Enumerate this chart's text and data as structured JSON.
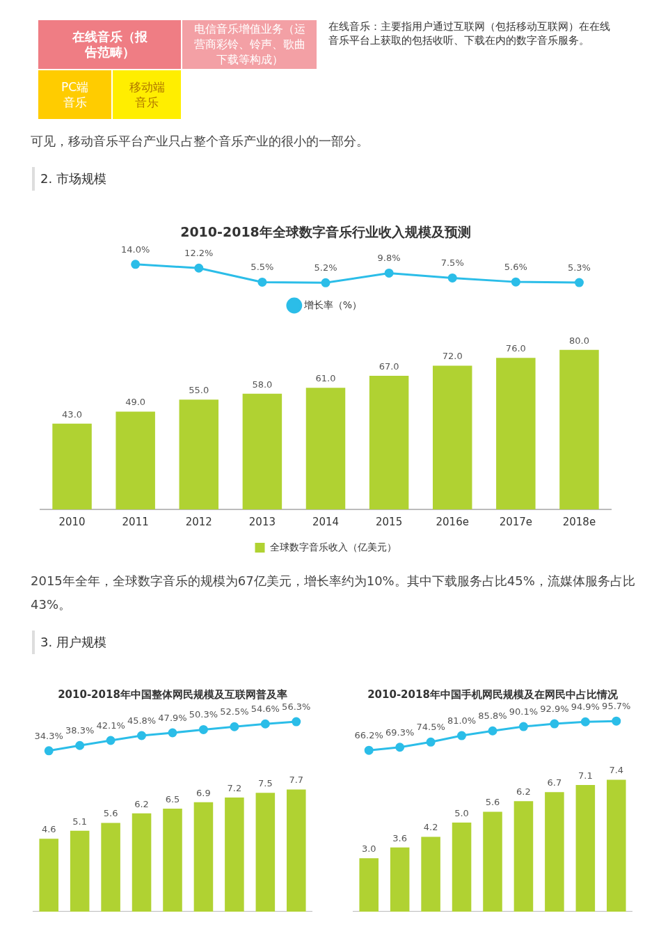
{
  "chart_data": [
    {
      "type": "other",
      "annotations": [
        "在线音乐（报告范畴）",
        "电信音乐增值业务（运营商彩铃、铃声、歌曲下载等构成）",
        "PC端音乐",
        "移动端音乐",
        "在线音乐：主要指用户通过互联网（包括移动互联网）在在线音乐平台上获取的包括收听、下载在内的数字音乐服务。",
        "可见，移动音乐平台产业只占整个音乐产业的很小的一部分。",
        "2. 市场规模"
      ]
    },
    {
      "type": "line",
      "title": "2010-2018年全球数字音乐行业收入规模及预测",
      "categories": [
        null,
        null,
        null,
        null,
        null,
        null,
        null,
        null,
        null
      ],
      "tick_labels": false,
      "legend": "bottom",
      "marker": "circle",
      "series": [
        {
          "name": "增长率（%）",
          "color": "#2bbde8",
          "values": [
            null,
            14.0,
            12.2,
            5.5,
            5.2,
            9.8,
            7.5,
            5.6,
            5.3
          ],
          "value_labels": [
            null,
            "14.0%",
            "12.2%",
            "5.5%",
            "5.2%",
            "9.8%",
            "7.5%",
            "5.6%",
            "5.3%"
          ]
        }
      ]
    },
    {
      "type": "bar",
      "categories": [
        "2010",
        "2011",
        "2012",
        "2013",
        "2014",
        "2015",
        "2016e",
        "2017e",
        "2018e"
      ],
      "tick_labels": "x",
      "legend": "bottom",
      "series": [
        {
          "name": "全球数字音乐收入（亿美元）",
          "color": "#b0d232",
          "values": [
            43,
            49,
            55,
            58,
            61,
            67,
            72,
            76,
            80
          ],
          "value_labels": [
            "43.0",
            "49.0",
            "55.0",
            "58.0",
            "61.0",
            "67.0",
            "72.0",
            "76.0",
            "80.0"
          ]
        }
      ],
      "annotations": [
        "2015年全年，全球数字音乐的规模为67亿美元，增长率约为10%。其中下载服务占比45%，流媒体服务占比43%。",
        "3. 用户规模"
      ]
    },
    {
      "type": "line",
      "title": "2010-2018年中国整体网民规模及互联网普及率",
      "categories": [
        null,
        null,
        null,
        null,
        null,
        null,
        null,
        null,
        null
      ],
      "tick_labels": false,
      "marker": "circle",
      "series": [
        {
          "color": "#2bbde8",
          "values": [
            34.3,
            38.3,
            42.1,
            45.8,
            47.9,
            50.3,
            52.5,
            54.6,
            56.3
          ],
          "value_labels": [
            "34.3%",
            "38.3%",
            "42.1%",
            "45.8%",
            "47.9%",
            "50.3%",
            "52.5%",
            "54.6%",
            "56.3%"
          ]
        }
      ]
    },
    {
      "type": "bar",
      "categories": [
        null,
        null,
        null,
        null,
        null,
        null,
        null,
        null,
        null
      ],
      "tick_labels": false,
      "series": [
        {
          "color": "#b0d232",
          "values": [
            4.6,
            5.1,
            5.6,
            6.2,
            6.5,
            6.9,
            7.2,
            7.5,
            7.7
          ],
          "value_labels": [
            "4.6",
            "5.1",
            "5.6",
            "6.2",
            "6.5",
            "6.9",
            "7.2",
            "7.5",
            "7.7"
          ]
        }
      ]
    },
    {
      "type": "line",
      "title": "2010-2018年中国手机网民规模及在网民中占比情况",
      "categories": [
        null,
        null,
        null,
        null,
        null,
        null,
        null,
        null,
        null
      ],
      "tick_labels": false,
      "marker": "circle",
      "series": [
        {
          "color": "#2bbde8",
          "values": [
            66.2,
            69.3,
            74.5,
            81.0,
            85.8,
            90.1,
            92.9,
            94.9,
            95.7
          ],
          "value_labels": [
            "66.2%",
            "69.3%",
            "74.5%",
            "81.0%",
            "85.8%",
            "90.1%",
            "92.9%",
            "94.9%",
            "95.7%"
          ]
        }
      ]
    },
    {
      "type": "bar",
      "categories": [
        null,
        null,
        null,
        null,
        null,
        null,
        null,
        null,
        null
      ],
      "tick_labels": false,
      "series": [
        {
          "color": "#b0d232",
          "values": [
            3.0,
            3.6,
            4.2,
            5.0,
            5.6,
            6.2,
            6.7,
            7.1,
            7.4
          ],
          "value_labels": [
            "3.0",
            "3.6",
            "4.2",
            "5.0",
            "5.6",
            "6.2",
            "6.7",
            "7.1",
            "7.4"
          ]
        }
      ]
    }
  ]
}
